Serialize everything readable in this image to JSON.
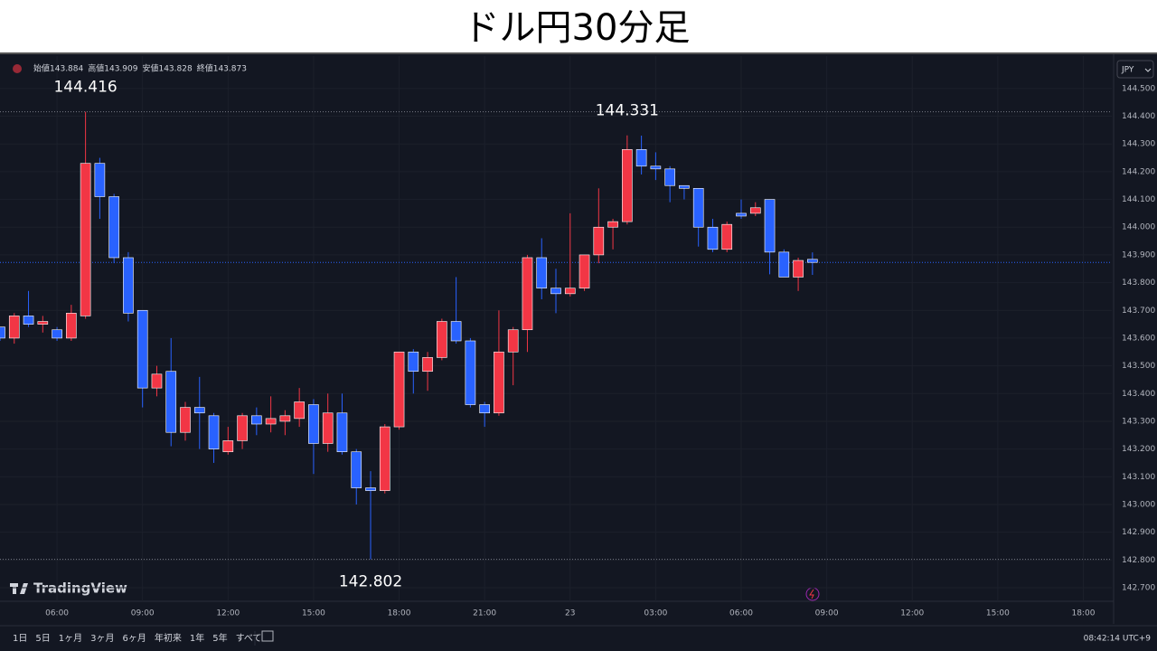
{
  "chart_data": {
    "type": "candlestick",
    "title": "ドル円30分足",
    "ohlc_labels": [
      "始値",
      "高値",
      "安値",
      "終値"
    ],
    "currency": "JPY",
    "brand": "TradingView",
    "range_buttons": [
      "1日",
      "5日",
      "1ヶ月",
      "3ヶ月",
      "6ヶ月",
      "年初来",
      "1年",
      "5年",
      "すべて"
    ],
    "clock": "08:42:14 UTC+9",
    "up_color": "#f23645",
    "down_color": "#2962ff",
    "grid": true,
    "open": [
      143.64,
      143.6,
      143.68,
      143.65,
      143.63,
      143.6,
      143.68,
      144.23,
      144.11,
      143.89,
      143.7,
      143.42,
      143.48,
      143.26,
      143.35,
      143.32,
      143.19,
      143.23,
      143.32,
      143.29,
      143.3,
      143.31,
      143.36,
      143.22,
      143.33,
      143.19,
      143.06,
      143.05,
      143.28,
      143.55,
      143.48,
      143.53,
      143.66,
      143.59,
      143.36,
      143.33,
      143.55,
      143.63,
      143.89,
      143.78,
      143.76,
      143.78,
      143.9,
      144.0,
      144.02,
      144.28,
      144.22,
      144.21,
      144.15,
      144.14,
      144.0,
      143.92,
      144.05,
      144.05,
      144.1,
      143.91,
      143.82,
      143.884
    ],
    "high": [
      143.64,
      143.69,
      143.77,
      143.68,
      143.64,
      143.72,
      144.416,
      144.25,
      144.12,
      143.91,
      143.7,
      143.5,
      143.6,
      143.37,
      143.46,
      143.33,
      143.28,
      143.33,
      143.35,
      143.39,
      143.34,
      143.42,
      143.38,
      143.4,
      143.4,
      143.2,
      143.12,
      143.29,
      143.55,
      143.56,
      143.55,
      143.67,
      143.82,
      143.6,
      143.37,
      143.7,
      143.64,
      143.9,
      143.96,
      143.85,
      144.05,
      143.9,
      144.14,
      144.03,
      144.331,
      144.33,
      144.27,
      144.22,
      144.15,
      144.14,
      144.03,
      144.02,
      144.1,
      144.09,
      144.1,
      143.92,
      143.89,
      143.909
    ],
    "low": [
      143.59,
      143.58,
      143.64,
      143.62,
      143.59,
      143.59,
      143.67,
      144.03,
      143.87,
      143.66,
      143.35,
      143.39,
      143.21,
      143.23,
      143.2,
      143.15,
      143.18,
      143.2,
      143.25,
      143.26,
      143.25,
      143.28,
      143.11,
      143.19,
      143.18,
      143.0,
      142.802,
      143.04,
      143.27,
      143.4,
      143.41,
      143.52,
      143.58,
      143.35,
      143.28,
      143.32,
      143.43,
      143.55,
      143.74,
      143.69,
      143.75,
      143.77,
      143.87,
      143.92,
      144.01,
      144.19,
      144.17,
      144.09,
      144.1,
      143.93,
      143.91,
      143.91,
      144.03,
      144.04,
      143.83,
      143.82,
      143.77,
      143.828
    ],
    "close": [
      143.6,
      143.68,
      143.65,
      143.66,
      143.6,
      143.69,
      144.23,
      144.11,
      143.89,
      143.69,
      143.42,
      143.47,
      143.26,
      143.35,
      143.33,
      143.2,
      143.23,
      143.32,
      143.29,
      143.31,
      143.32,
      143.37,
      143.22,
      143.33,
      143.19,
      143.06,
      143.05,
      143.28,
      143.55,
      143.48,
      143.53,
      143.66,
      143.59,
      143.36,
      143.33,
      143.55,
      143.63,
      143.89,
      143.78,
      143.76,
      143.78,
      143.9,
      144.0,
      144.02,
      144.28,
      144.22,
      144.21,
      144.15,
      144.14,
      144.0,
      143.92,
      144.01,
      144.04,
      144.07,
      143.91,
      143.82,
      143.88,
      143.873
    ],
    "annotations": [
      144.416,
      144.331,
      142.802
    ],
    "xlim": [
      0,
      78
    ],
    "xticks": [
      {
        "value": 4,
        "label": "06:00"
      },
      {
        "value": 10,
        "label": "09:00"
      },
      {
        "value": 16,
        "label": "12:00"
      },
      {
        "value": 22,
        "label": "15:00"
      },
      {
        "value": 28,
        "label": "18:00"
      },
      {
        "value": 34,
        "label": "21:00"
      },
      {
        "value": 40,
        "label": "23"
      },
      {
        "value": 46,
        "label": "03:00"
      },
      {
        "value": 52,
        "label": "06:00"
      },
      {
        "value": 58,
        "label": "09:00"
      },
      {
        "value": 64,
        "label": "12:00"
      },
      {
        "value": 70,
        "label": "15:00"
      },
      {
        "value": 76,
        "label": "18:00"
      }
    ],
    "ylim": [
      142.651,
      144.617
    ],
    "yticks": [
      {
        "value": 142.7,
        "label": "142.700"
      },
      {
        "value": 142.8,
        "label": "142.800"
      },
      {
        "value": 142.9,
        "label": "142.900"
      },
      {
        "value": 143.0,
        "label": "143.000"
      },
      {
        "value": 143.1,
        "label": "143.100"
      },
      {
        "value": 143.2,
        "label": "143.200"
      },
      {
        "value": 143.3,
        "label": "143.300"
      },
      {
        "value": 143.4,
        "label": "143.400"
      },
      {
        "value": 143.5,
        "label": "143.500"
      },
      {
        "value": 143.6,
        "label": "143.600"
      },
      {
        "value": 143.7,
        "label": "143.700"
      },
      {
        "value": 143.8,
        "label": "143.800"
      },
      {
        "value": 143.9,
        "label": "143.900"
      },
      {
        "value": 144.0,
        "label": "144.000"
      },
      {
        "value": 144.1,
        "label": "144.100"
      },
      {
        "value": 144.2,
        "label": "144.200"
      },
      {
        "value": 144.3,
        "label": "144.300"
      },
      {
        "value": 144.4,
        "label": "144.400"
      },
      {
        "value": 144.5,
        "label": "144.500"
      }
    ]
  }
}
